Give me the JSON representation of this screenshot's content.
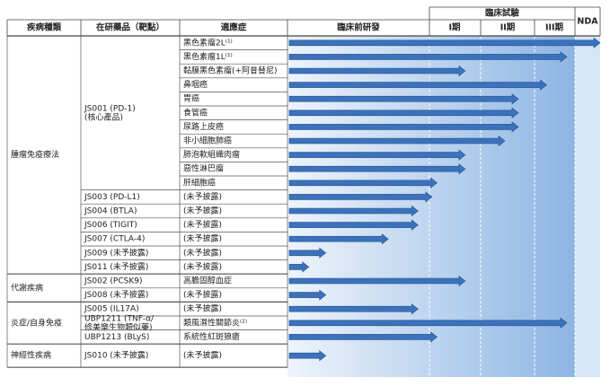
{
  "header": {
    "disease": "疾病種類",
    "drug": "在研藥品（靶點）",
    "indication": "適應症",
    "preclinical": "臨床前研發",
    "clinical": "臨床試驗",
    "phase1": "I期",
    "phase2": "II期",
    "phase3": "III期",
    "nda": "NDA"
  },
  "groups": [
    {
      "disease": "腫瘤免疫療法",
      "drugs": [
        {
          "name": [
            "JS001 (PD-1)",
            "(核心產品)"
          ],
          "indications": [
            {
              "name": "黑色素瘤2L⁽¹⁾",
              "progress": 5
            },
            {
              "name": "黑色素瘤1L⁽¹⁾",
              "progress": 3.8
            },
            {
              "name": "黏膜黑色素瘤(+阿昔替尼)",
              "progress": 1.7
            },
            {
              "name": "鼻咽癌",
              "progress": 3.3
            },
            {
              "name": "胃癌",
              "progress": 2.7
            },
            {
              "name": "食管癌",
              "progress": 2.7
            },
            {
              "name": "尿路上皮癌",
              "progress": 2.7
            },
            {
              "name": "非小細胞肺癌",
              "progress": 2.45
            },
            {
              "name": "肺泡軟組織肉瘤",
              "progress": 1.7
            },
            {
              "name": "惡性淋巴瘤",
              "progress": 1.7
            },
            {
              "name": "肝細胞癌",
              "progress": 1.15
            }
          ]
        },
        {
          "name": [
            "JS003 (PD-L1)"
          ],
          "indications": [
            {
              "name": "(未予披露)",
              "progress": 1.05
            }
          ]
        },
        {
          "name": [
            "JS004 (BTLA)"
          ],
          "indications": [
            {
              "name": "(未予披露)",
              "progress": 0.92
            }
          ]
        },
        {
          "name": [
            "JS006 (TIGIT)"
          ],
          "indications": [
            {
              "name": "(未予披露)",
              "progress": 0.92
            }
          ]
        },
        {
          "name": [
            "JS007 (CTLA-4)"
          ],
          "indications": [
            {
              "name": "(未予披露)",
              "progress": 0.71
            }
          ]
        },
        {
          "name": [
            "JS009 (未予披露)"
          ],
          "indications": [
            {
              "name": "(未予披露)",
              "progress": 0.27
            }
          ]
        },
        {
          "name": [
            "JS011 (未予披露)"
          ],
          "indications": [
            {
              "name": "(未予披露)",
              "progress": 0.15
            }
          ]
        }
      ]
    },
    {
      "disease": "代謝疾病",
      "drugs": [
        {
          "name": [
            "JS002 (PCSK9)"
          ],
          "indications": [
            {
              "name": "高膽固醇血症",
              "progress": 1.7
            }
          ]
        },
        {
          "name": [
            "JS008 (未予披露)"
          ],
          "indications": [
            {
              "name": "(未予披露)",
              "progress": 0.27
            }
          ]
        }
      ]
    },
    {
      "disease": "炎症/自身免疫",
      "drugs": [
        {
          "name": [
            "JS005 (IL17A)"
          ],
          "indications": [
            {
              "name": "(未予披露)",
              "progress": 0.92
            }
          ]
        },
        {
          "name": [
            "UBP1211 (TNF-α/",
            "修美樂生物類似藥)"
          ],
          "indications": [
            {
              "name": "類風濕性關節炎⁽²⁾",
              "progress": 3.8
            }
          ]
        },
        {
          "name": [
            "UBP1213 (BLyS)"
          ],
          "indications": [
            {
              "name": "系統性紅斑狼瘡",
              "progress": 1.15
            }
          ]
        }
      ]
    },
    {
      "disease": "神經性疾病",
      "drugs": [
        {
          "name": [
            "JS010 (未予披露)"
          ],
          "indications": [
            {
              "name": "(未予披露)",
              "progress": 0.27
            }
          ]
        }
      ]
    }
  ]
}
